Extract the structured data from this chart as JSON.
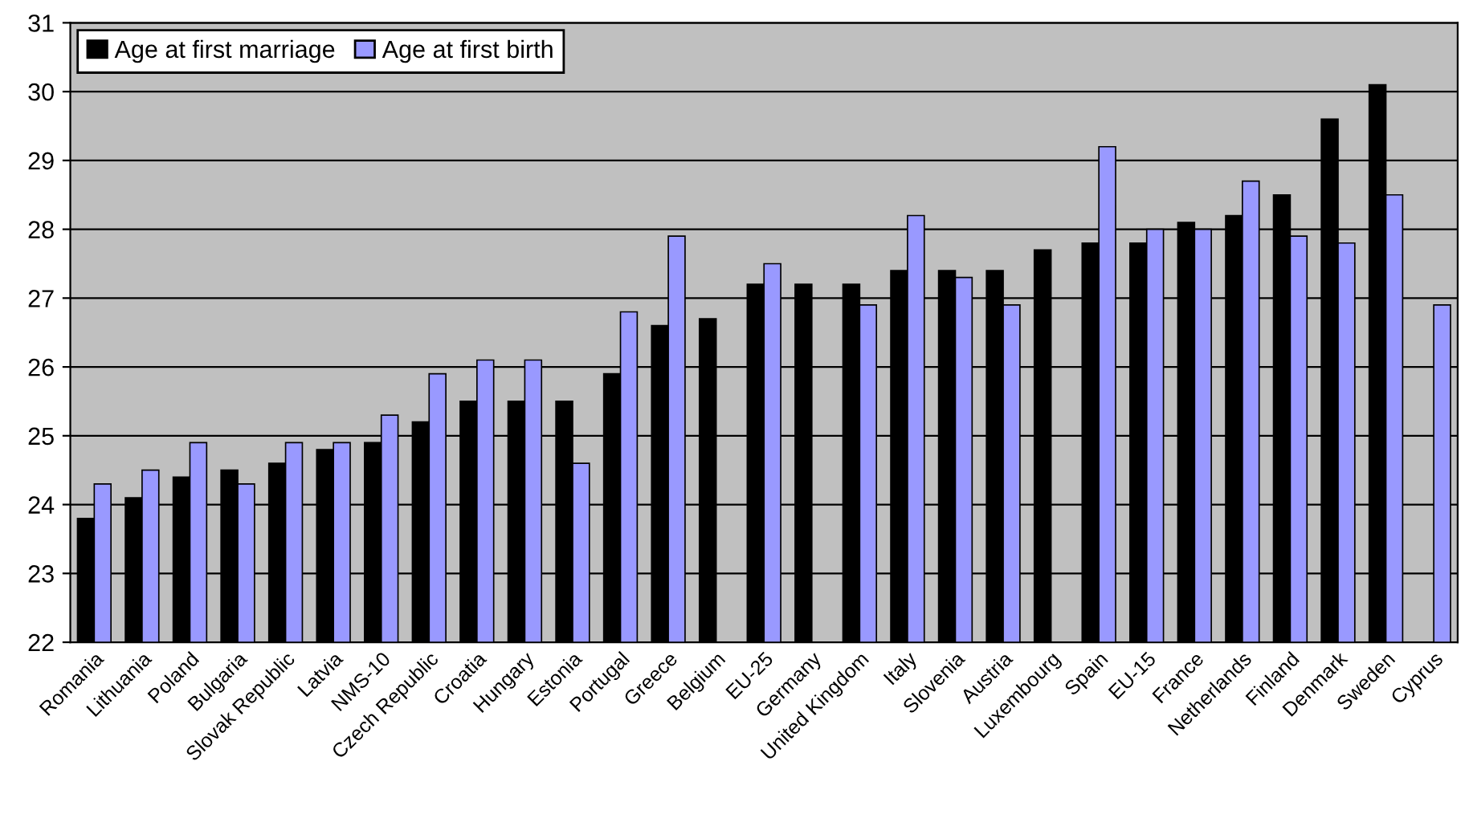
{
  "chart_data": {
    "type": "bar",
    "categories": [
      "Romania",
      "Lithuania",
      "Poland",
      "Bulgaria",
      "Slovak Republic",
      "Latvia",
      "NMS-10",
      "Czech Republic",
      "Croatia",
      "Hungary",
      "Estonia",
      "Portugal",
      "Greece",
      "Belgium",
      "EU-25",
      "Germany",
      "United Kingdom",
      "Italy",
      "Slovenia",
      "Austria",
      "Luxembourg",
      "Spain",
      "EU-15",
      "France",
      "Netherlands",
      "Finland",
      "Denmark",
      "Sweden",
      "Cyprus"
    ],
    "series": [
      {
        "name": "Age at first marriage",
        "color": "#000000",
        "values": [
          23.8,
          24.1,
          24.4,
          24.5,
          24.6,
          24.8,
          24.9,
          25.2,
          25.5,
          25.5,
          25.5,
          25.9,
          26.6,
          26.7,
          27.2,
          27.2,
          27.2,
          27.4,
          27.4,
          27.4,
          27.7,
          27.8,
          27.8,
          28.1,
          28.2,
          28.5,
          29.6,
          30.1,
          null
        ]
      },
      {
        "name": "Age at first birth",
        "color": "#9999ff",
        "values": [
          24.3,
          24.5,
          24.9,
          24.3,
          24.9,
          24.9,
          25.3,
          25.9,
          26.1,
          26.1,
          24.6,
          26.8,
          27.9,
          null,
          27.5,
          null,
          26.9,
          28.2,
          27.3,
          26.9,
          null,
          29.2,
          28.0,
          28.0,
          28.7,
          27.9,
          27.8,
          28.5,
          26.9
        ]
      }
    ],
    "ylim": [
      22,
      31
    ],
    "yticks": [
      22,
      23,
      24,
      25,
      26,
      27,
      28,
      29,
      30,
      31
    ],
    "grid": "y",
    "legend": "top left"
  }
}
